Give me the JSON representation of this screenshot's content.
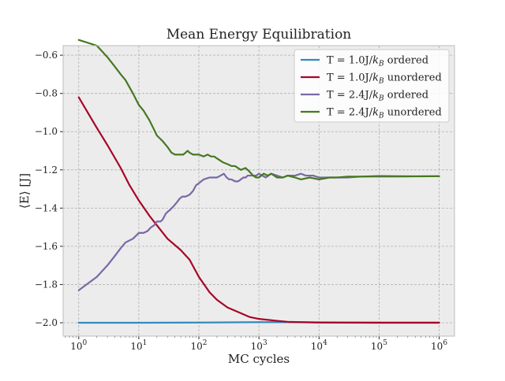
{
  "chart_data": {
    "type": "line",
    "title": "Mean Energy Equilibration",
    "xlabel": "MC cycles",
    "ylabel": "⟨E⟩ [J]",
    "xscale": "log",
    "xlim": [
      0.55,
      1800000
    ],
    "ylim": [
      -2.07,
      -0.55
    ],
    "xticks": [
      1,
      10,
      100,
      1000,
      10000,
      100000,
      1000000
    ],
    "xtick_labels": [
      {
        "base": "10",
        "exp": "0"
      },
      {
        "base": "10",
        "exp": "1"
      },
      {
        "base": "10",
        "exp": "2"
      },
      {
        "base": "10",
        "exp": "3"
      },
      {
        "base": "10",
        "exp": "4"
      },
      {
        "base": "10",
        "exp": "5"
      },
      {
        "base": "10",
        "exp": "6"
      }
    ],
    "yticks": [
      -2.0,
      -1.8,
      -1.6,
      -1.4,
      -1.2,
      -1.0,
      -0.8,
      -0.6
    ],
    "ytick_labels": [
      "−2.0",
      "−1.8",
      "−1.6",
      "−1.4",
      "−1.2",
      "−1.0",
      "−0.8",
      "−0.6"
    ],
    "grid": true,
    "legend_position": "top-right",
    "colors": {
      "background": "#ececec",
      "grid": "#b0b0b0",
      "axes_edge": "#bcbcbc"
    },
    "series": [
      {
        "name": "T = 1.0J/k_B ordered",
        "legend": {
          "pre": "T = 1.0J/",
          "sym": "k",
          "sub": "B",
          "post": " ordered"
        },
        "color": "#348abd",
        "x": [
          1,
          10,
          100,
          1000,
          3000,
          10000,
          100000,
          1000000
        ],
        "y": [
          -2.0,
          -2.0,
          -1.999,
          -1.997,
          -1.997,
          -1.998,
          -1.999,
          -1.999
        ]
      },
      {
        "name": "T = 1.0J/k_B unordered",
        "legend": {
          "pre": "T = 1.0J/",
          "sym": "k",
          "sub": "B",
          "post": " unordered"
        },
        "color": "#a60628",
        "x": [
          1,
          2,
          3,
          5,
          7,
          10,
          15,
          20,
          30,
          50,
          70,
          100,
          150,
          200,
          300,
          500,
          700,
          1000,
          2000,
          3000,
          5000,
          10000,
          100000,
          1000000
        ],
        "y": [
          -0.82,
          -0.98,
          -1.07,
          -1.19,
          -1.28,
          -1.36,
          -1.44,
          -1.49,
          -1.56,
          -1.62,
          -1.67,
          -1.76,
          -1.84,
          -1.88,
          -1.92,
          -1.95,
          -1.97,
          -1.98,
          -1.99,
          -1.995,
          -1.997,
          -1.999,
          -2.0,
          -2.0
        ]
      },
      {
        "name": "T = 2.4J/k_B ordered",
        "legend": {
          "pre": "T = 2.4J/",
          "sym": "k",
          "sub": "B",
          "post": " ordered"
        },
        "color": "#7a68a6",
        "x": [
          1,
          2,
          3,
          4,
          5,
          6,
          8,
          10,
          12,
          14,
          16,
          18,
          20,
          23,
          25,
          28,
          30,
          33,
          38,
          43,
          48,
          53,
          60,
          70,
          80,
          90,
          100,
          120,
          150,
          180,
          200,
          230,
          260,
          290,
          320,
          350,
          400,
          450,
          500,
          550,
          600,
          650,
          700,
          800,
          900,
          1000,
          1300,
          1600,
          2000,
          2500,
          3000,
          4000,
          5000,
          6000,
          8000,
          10000,
          15000,
          20000,
          30000,
          50000,
          100000,
          200000,
          500000,
          1000000
        ],
        "y": [
          -1.83,
          -1.76,
          -1.7,
          -1.65,
          -1.61,
          -1.58,
          -1.56,
          -1.53,
          -1.53,
          -1.52,
          -1.5,
          -1.49,
          -1.47,
          -1.47,
          -1.46,
          -1.43,
          -1.42,
          -1.41,
          -1.39,
          -1.37,
          -1.35,
          -1.34,
          -1.34,
          -1.33,
          -1.31,
          -1.28,
          -1.27,
          -1.25,
          -1.24,
          -1.24,
          -1.24,
          -1.23,
          -1.22,
          -1.24,
          -1.25,
          -1.25,
          -1.26,
          -1.26,
          -1.25,
          -1.24,
          -1.24,
          -1.23,
          -1.23,
          -1.23,
          -1.23,
          -1.22,
          -1.24,
          -1.22,
          -1.23,
          -1.24,
          -1.23,
          -1.23,
          -1.22,
          -1.23,
          -1.23,
          -1.24,
          -1.24,
          -1.24,
          -1.24,
          -1.235,
          -1.235,
          -1.235,
          -1.233,
          -1.233
        ]
      },
      {
        "name": "T = 2.4J/k_B unordered",
        "legend": {
          "pre": "T = 2.4J/",
          "sym": "k",
          "sub": "B",
          "post": " unordered"
        },
        "color": "#467821",
        "x": [
          1,
          2,
          3,
          4,
          5,
          6,
          8,
          10,
          12,
          15,
          18,
          20,
          25,
          30,
          35,
          40,
          45,
          50,
          55,
          60,
          65,
          70,
          80,
          90,
          100,
          120,
          140,
          160,
          180,
          200,
          250,
          300,
          350,
          400,
          500,
          600,
          700,
          800,
          900,
          1000,
          1200,
          1400,
          1600,
          2000,
          2500,
          3000,
          4000,
          5000,
          7000,
          10000,
          15000,
          20000,
          30000,
          50000,
          100000,
          200000,
          500000,
          1000000
        ],
        "y": [
          -0.52,
          -0.55,
          -0.61,
          -0.66,
          -0.7,
          -0.73,
          -0.8,
          -0.86,
          -0.89,
          -0.94,
          -0.99,
          -1.02,
          -1.05,
          -1.08,
          -1.11,
          -1.12,
          -1.12,
          -1.12,
          -1.12,
          -1.11,
          -1.1,
          -1.11,
          -1.12,
          -1.12,
          -1.12,
          -1.13,
          -1.12,
          -1.13,
          -1.13,
          -1.14,
          -1.16,
          -1.17,
          -1.18,
          -1.18,
          -1.2,
          -1.19,
          -1.21,
          -1.23,
          -1.24,
          -1.24,
          -1.22,
          -1.23,
          -1.22,
          -1.24,
          -1.24,
          -1.23,
          -1.24,
          -1.25,
          -1.24,
          -1.25,
          -1.24,
          -1.24,
          -1.235,
          -1.235,
          -1.232,
          -1.233,
          -1.234,
          -1.233
        ]
      }
    ]
  }
}
